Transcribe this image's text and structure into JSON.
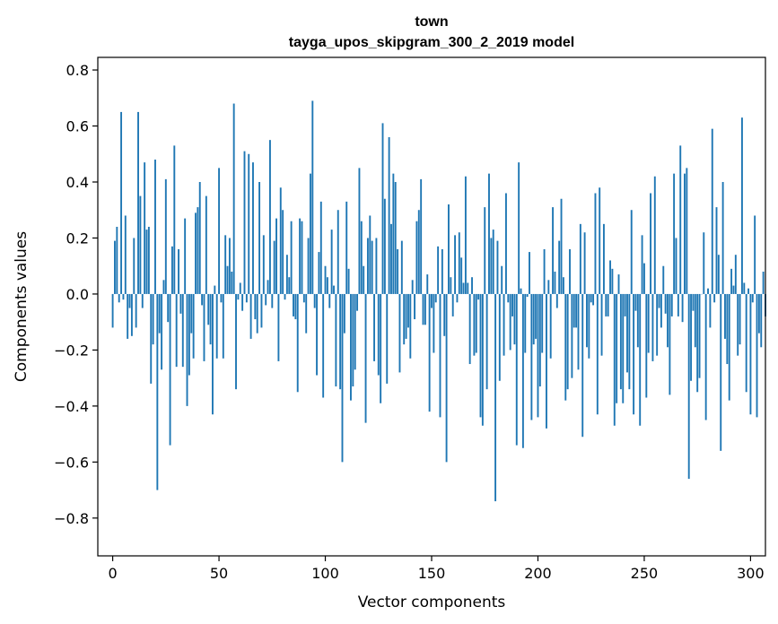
{
  "chart_data": {
    "type": "bar",
    "title": "town",
    "subtitle": "tayga_upos_skipgram_300_2_2019 model",
    "xlabel": "Vector components",
    "ylabel": "Components values",
    "xlim": [
      -7,
      307
    ],
    "ylim": [
      -0.935,
      0.845
    ],
    "xticks": [
      0,
      50,
      100,
      150,
      200,
      250,
      300
    ],
    "xtick_labels": [
      "0",
      "50",
      "100",
      "150",
      "200",
      "250",
      "300"
    ],
    "yticks": [
      -0.8,
      -0.6,
      -0.4,
      -0.2,
      0.0,
      0.2,
      0.4,
      0.6,
      0.8
    ],
    "ytick_labels": [
      "−0.8",
      "−0.6",
      "−0.4",
      "−0.2",
      "0.0",
      "0.2",
      "0.4",
      "0.6",
      "0.8"
    ],
    "bar_color": "#1f77b4",
    "values": [
      -0.12,
      0.19,
      0.24,
      -0.03,
      0.65,
      -0.02,
      0.28,
      -0.16,
      -0.05,
      -0.15,
      0.2,
      -0.12,
      0.65,
      0.35,
      -0.05,
      0.47,
      0.23,
      0.24,
      -0.32,
      -0.18,
      0.48,
      -0.7,
      -0.14,
      -0.27,
      0.05,
      0.41,
      -0.1,
      -0.54,
      0.17,
      0.53,
      -0.26,
      0.16,
      -0.07,
      -0.26,
      0.27,
      -0.4,
      -0.29,
      -0.14,
      -0.23,
      0.29,
      0.31,
      0.4,
      -0.04,
      -0.24,
      0.35,
      -0.11,
      -0.18,
      -0.43,
      0.03,
      -0.23,
      0.45,
      -0.03,
      -0.23,
      0.21,
      0.1,
      0.2,
      0.08,
      0.68,
      -0.34,
      -0.02,
      0.04,
      -0.06,
      0.51,
      -0.03,
      0.5,
      -0.16,
      0.47,
      -0.09,
      -0.14,
      0.4,
      -0.12,
      0.21,
      -0.04,
      0.05,
      0.55,
      -0.05,
      0.19,
      0.27,
      -0.24,
      0.38,
      0.3,
      -0.02,
      0.14,
      0.06,
      0.26,
      -0.08,
      -0.09,
      -0.35,
      0.27,
      0.26,
      -0.03,
      -0.14,
      0.2,
      0.43,
      0.69,
      -0.05,
      -0.29,
      0.15,
      0.33,
      -0.37,
      0.1,
      0.06,
      -0.05,
      0.23,
      0.03,
      -0.33,
      0.3,
      -0.34,
      -0.6,
      -0.14,
      0.33,
      0.09,
      -0.38,
      -0.33,
      -0.27,
      -0.06,
      0.45,
      0.26,
      0.1,
      -0.46,
      0.2,
      0.28,
      0.19,
      -0.24,
      0.2,
      -0.29,
      -0.39,
      0.61,
      0.34,
      -0.32,
      0.56,
      0.25,
      0.43,
      0.4,
      0.16,
      -0.28,
      0.19,
      -0.18,
      -0.16,
      -0.12,
      -0.23,
      0.05,
      -0.09,
      0.26,
      0.3,
      0.41,
      -0.11,
      -0.11,
      0.07,
      -0.42,
      -0.05,
      -0.21,
      -0.03,
      0.17,
      -0.44,
      0.16,
      -0.15,
      -0.6,
      0.32,
      0.06,
      -0.08,
      0.21,
      -0.03,
      0.22,
      0.13,
      0.04,
      0.42,
      0.04,
      -0.25,
      0.06,
      -0.22,
      -0.21,
      -0.02,
      -0.44,
      -0.47,
      0.31,
      -0.34,
      0.43,
      0.2,
      0.23,
      -0.74,
      0.19,
      -0.31,
      0.1,
      -0.22,
      0.36,
      -0.03,
      -0.2,
      -0.08,
      -0.18,
      -0.54,
      0.47,
      0.02,
      -0.55,
      -0.21,
      -0.01,
      0.15,
      -0.45,
      -0.18,
      -0.16,
      -0.44,
      -0.33,
      -0.21,
      0.16,
      -0.48,
      0.05,
      -0.23,
      0.31,
      0.08,
      -0.05,
      0.19,
      0.34,
      0.06,
      -0.38,
      -0.34,
      0.16,
      -0.3,
      -0.12,
      -0.12,
      -0.27,
      0.25,
      -0.51,
      0.22,
      -0.19,
      -0.23,
      -0.03,
      -0.04,
      0.36,
      -0.43,
      0.38,
      -0.22,
      0.25,
      -0.08,
      -0.08,
      0.12,
      0.09,
      -0.47,
      -0.39,
      0.07,
      -0.34,
      -0.39,
      -0.08,
      -0.28,
      -0.34,
      0.3,
      -0.43,
      -0.06,
      -0.19,
      -0.47,
      0.21,
      0.11,
      -0.37,
      -0.21,
      0.36,
      -0.24,
      0.42,
      -0.22,
      -0.05,
      -0.12,
      0.1,
      -0.07,
      -0.19,
      -0.36,
      -0.08,
      0.43,
      0.2,
      -0.08,
      0.53,
      -0.1,
      0.43,
      0.45,
      -0.66,
      -0.31,
      -0.06,
      -0.19,
      -0.35,
      -0.3,
      0.0,
      0.22,
      -0.45,
      0.02,
      -0.12,
      0.59,
      -0.03,
      0.31,
      0.14,
      -0.56,
      0.4,
      -0.16,
      -0.25,
      -0.38,
      0.09,
      0.03,
      0.14,
      -0.22,
      -0.18,
      0.63,
      0.04,
      -0.35,
      0.02,
      -0.43,
      -0.03,
      0.28,
      -0.44,
      -0.14,
      -0.19,
      0.08,
      -0.08
    ]
  }
}
